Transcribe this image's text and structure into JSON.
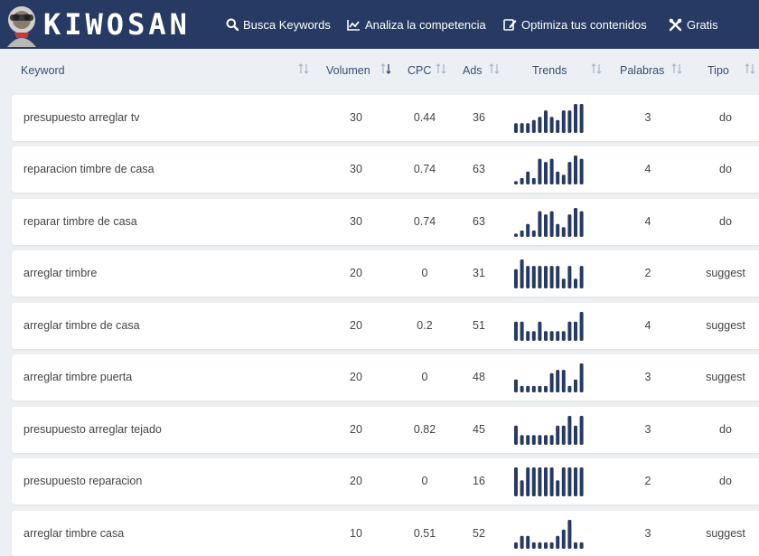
{
  "header": {
    "logo_text": "KIWOSAN",
    "nav": [
      {
        "label": "Busca Keywords",
        "icon": "search-icon"
      },
      {
        "label": "Analiza la competencia",
        "icon": "chart-icon"
      },
      {
        "label": "Optimiza tus contenidos",
        "icon": "edit-icon"
      },
      {
        "label": "Gratis",
        "icon": "tools-icon"
      }
    ]
  },
  "table": {
    "columns": [
      "Keyword",
      "Volumen",
      "CPC",
      "Ads",
      "Trends",
      "Palabras",
      "Tipo"
    ],
    "rows": [
      {
        "keyword": "presupuesto arreglar tv",
        "volumen": "30",
        "cpc": "0.44",
        "ads": "36",
        "palabras": "3",
        "tipo": "do",
        "trend": [
          3,
          3,
          3,
          4,
          5,
          7,
          5,
          4,
          7,
          7,
          9,
          9
        ]
      },
      {
        "keyword": "reparacion timbre de casa",
        "volumen": "30",
        "cpc": "0.74",
        "ads": "63",
        "palabras": "4",
        "tipo": "do",
        "trend": [
          1,
          2,
          4,
          2,
          8,
          7,
          8,
          4,
          3,
          7,
          9,
          8
        ]
      },
      {
        "keyword": "reparar timbre de casa",
        "volumen": "30",
        "cpc": "0.74",
        "ads": "63",
        "palabras": "4",
        "tipo": "do",
        "trend": [
          1,
          2,
          4,
          2,
          8,
          7,
          8,
          4,
          3,
          7,
          9,
          8
        ]
      },
      {
        "keyword": "arreglar timbre",
        "volumen": "20",
        "cpc": "0",
        "ads": "31",
        "palabras": "2",
        "tipo": "suggest",
        "trend": [
          6,
          9,
          7,
          7,
          7,
          7,
          7,
          7,
          3,
          7,
          3,
          7
        ]
      },
      {
        "keyword": "arreglar timbre de casa",
        "volumen": "20",
        "cpc": "0.2",
        "ads": "51",
        "palabras": "4",
        "tipo": "suggest",
        "trend": [
          6,
          6,
          3,
          3,
          6,
          3,
          3,
          3,
          3,
          6,
          6,
          9
        ]
      },
      {
        "keyword": "arreglar timbre puerta",
        "volumen": "20",
        "cpc": "0",
        "ads": "48",
        "palabras": "3",
        "tipo": "suggest",
        "trend": [
          4,
          2,
          2,
          2,
          2,
          2,
          6,
          7,
          7,
          2,
          4,
          9
        ]
      },
      {
        "keyword": "presupuesto arreglar tejado",
        "volumen": "20",
        "cpc": "0.82",
        "ads": "45",
        "palabras": "3",
        "tipo": "do",
        "trend": [
          6,
          3,
          3,
          3,
          3,
          3,
          3,
          6,
          6,
          9,
          6,
          9
        ]
      },
      {
        "keyword": "presupuesto reparacion",
        "volumen": "20",
        "cpc": "0",
        "ads": "16",
        "palabras": "2",
        "tipo": "do",
        "trend": [
          9,
          5,
          9,
          9,
          9,
          9,
          9,
          5,
          9,
          9,
          9,
          9
        ]
      },
      {
        "keyword": "arreglar timbre casa",
        "volumen": "10",
        "cpc": "0.51",
        "ads": "52",
        "palabras": "3",
        "tipo": "suggest",
        "trend": [
          2,
          4,
          4,
          2,
          2,
          2,
          2,
          4,
          6,
          9,
          2,
          2
        ]
      }
    ]
  },
  "colors": {
    "header_bg": "#273a63",
    "bar": "#273a63",
    "page_bg": "#eceff4"
  }
}
